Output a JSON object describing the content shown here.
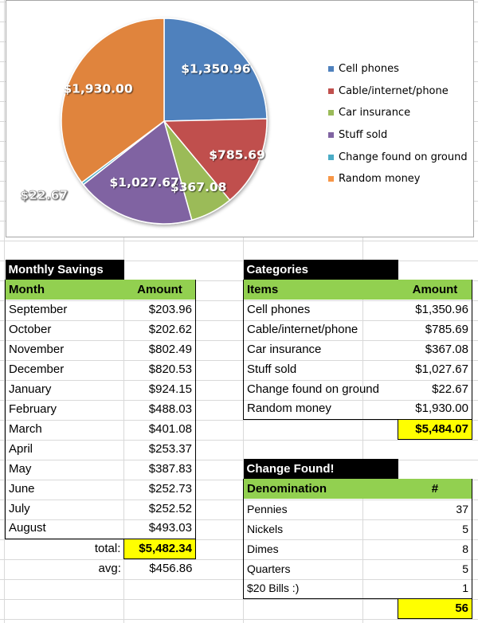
{
  "colors": {
    "cell_phones": "#4f81bd",
    "cable": "#c0504d",
    "car": "#9bbb59",
    "stuff": "#8064a2",
    "change": "#4bacc6",
    "random": "#f79646",
    "header_black": "#000000",
    "header_green": "#92d050",
    "highlight": "#ffff00"
  },
  "chart_data": {
    "type": "pie",
    "slices": [
      {
        "name": "Cell phones",
        "value": 1350.96,
        "label": "$1,350.96",
        "color": "#4f81bd"
      },
      {
        "name": "Cable/internet/phone",
        "value": 785.69,
        "label": "$785.69",
        "color": "#c0504d"
      },
      {
        "name": "Car insurance",
        "value": 367.08,
        "label": "$367.08",
        "color": "#9bbb59"
      },
      {
        "name": "Stuff sold",
        "value": 1027.67,
        "label": "$1,027.67",
        "color": "#8064a2"
      },
      {
        "name": "Change found on ground",
        "value": 22.67,
        "label": "$22.67",
        "color": "#4bacc6"
      },
      {
        "name": "Random money",
        "value": 1930.0,
        "label": "$1,930.00",
        "color": "#e0843d"
      }
    ],
    "legend_placement": "right"
  },
  "monthly": {
    "title": "Monthly Savings",
    "col_month": "Month",
    "col_amount": "Amount",
    "rows": [
      {
        "month": "September",
        "amount": "$203.96"
      },
      {
        "month": "October",
        "amount": "$202.62"
      },
      {
        "month": "November",
        "amount": "$802.49"
      },
      {
        "month": "December",
        "amount": "$820.53"
      },
      {
        "month": "January",
        "amount": "$924.15"
      },
      {
        "month": "February",
        "amount": "$488.03"
      },
      {
        "month": "March",
        "amount": "$401.08"
      },
      {
        "month": "April",
        "amount": "$253.37"
      },
      {
        "month": "May",
        "amount": "$387.83"
      },
      {
        "month": "June",
        "amount": "$252.73"
      },
      {
        "month": "July",
        "amount": "$252.52"
      },
      {
        "month": "August",
        "amount": "$493.03"
      }
    ],
    "total_label": "total:",
    "total_value": "$5,482.34",
    "avg_label": "avg:",
    "avg_value": "$456.86"
  },
  "categories": {
    "title": "Categories",
    "col_items": "Items",
    "col_amount": "Amount",
    "rows": [
      {
        "item": "Cell phones",
        "amount": "$1,350.96"
      },
      {
        "item": "Cable/internet/phone",
        "amount": "$785.69"
      },
      {
        "item": "Car insurance",
        "amount": "$367.08"
      },
      {
        "item": "Stuff sold",
        "amount": "$1,027.67"
      },
      {
        "item": "Change found on ground",
        "amount": "$22.67"
      },
      {
        "item": "Random money",
        "amount": "$1,930.00"
      }
    ],
    "total": "$5,484.07"
  },
  "change": {
    "title": "Change Found!",
    "col_denom": "Denomination",
    "col_count": "#",
    "rows": [
      {
        "denom": "Pennies",
        "count": "37"
      },
      {
        "denom": "Nickels",
        "count": "5"
      },
      {
        "denom": "Dimes",
        "count": "8"
      },
      {
        "denom": "Quarters",
        "count": "5"
      },
      {
        "denom": "$20 Bills :)",
        "count": "1"
      }
    ],
    "total": "56"
  }
}
